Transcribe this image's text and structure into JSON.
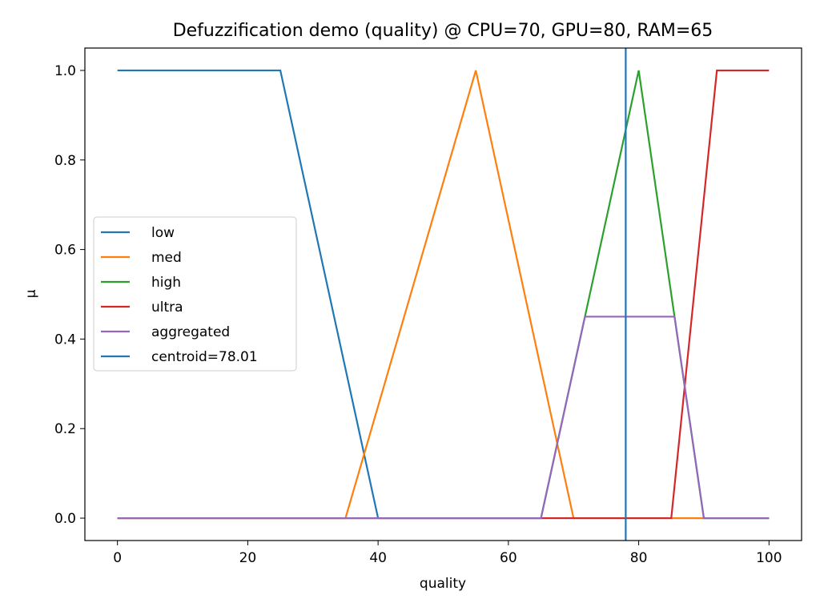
{
  "chart_data": {
    "type": "line",
    "title": "Defuzzification demo (quality) @ CPU=70, GPU=80, RAM=65",
    "xlabel": "quality",
    "ylabel": "μ",
    "xlim": [
      -5,
      105
    ],
    "ylim": [
      -0.05,
      1.05
    ],
    "xticks": [
      0,
      20,
      40,
      60,
      80,
      100
    ],
    "xtick_labels": [
      "0",
      "20",
      "40",
      "60",
      "80",
      "100"
    ],
    "yticks": [
      0.0,
      0.2,
      0.4,
      0.6,
      0.8,
      1.0
    ],
    "ytick_labels": [
      "0.0",
      "0.2",
      "0.4",
      "0.6",
      "0.8",
      "1.0"
    ],
    "grid": false,
    "legend_position": "center-left",
    "series": [
      {
        "name": "low",
        "color": "#1f77b4",
        "x": [
          0,
          25,
          40,
          100
        ],
        "y": [
          1,
          1,
          0,
          0
        ]
      },
      {
        "name": "med",
        "color": "#ff7f0e",
        "x": [
          0,
          35,
          55,
          70,
          100
        ],
        "y": [
          0,
          0,
          1,
          0,
          0
        ]
      },
      {
        "name": "high",
        "color": "#2ca02c",
        "x": [
          0,
          65,
          80,
          90,
          100
        ],
        "y": [
          0,
          0,
          1,
          0,
          0
        ]
      },
      {
        "name": "ultra",
        "color": "#d62728",
        "x": [
          0,
          85,
          92,
          100
        ],
        "y": [
          0,
          0,
          1,
          1
        ]
      },
      {
        "name": "aggregated",
        "color": "#9467bd",
        "x": [
          0,
          65,
          71.75,
          85.5,
          90,
          100
        ],
        "y": [
          0,
          0,
          0.45,
          0.45,
          0,
          0
        ]
      }
    ],
    "vline": {
      "name": "centroid=78.01",
      "color": "#1f77b4",
      "x": 78.01
    }
  }
}
